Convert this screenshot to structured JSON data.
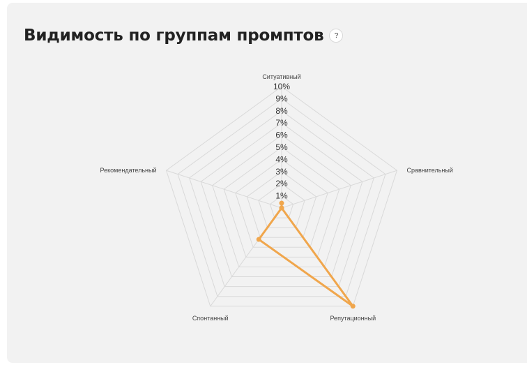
{
  "header": {
    "title": "Видимость по группам промптов",
    "help_label": "?"
  },
  "colors": {
    "series": "#f0a64c",
    "grid": "#d9d9d9",
    "card_bg": "#f2f2f2"
  },
  "chart_data": {
    "type": "radar",
    "title": "Видимость по группам промптов",
    "categories": [
      "Ситуативный",
      "Сравнительный",
      "Репутационный",
      "Спонтанный",
      "Рекомендательный"
    ],
    "ticks": [
      "1%",
      "2%",
      "3%",
      "4%",
      "5%",
      "6%",
      "7%",
      "8%",
      "9%",
      "10%"
    ],
    "rlim": [
      0,
      10
    ],
    "unit": "%",
    "series": [
      {
        "values": [
          0.4,
          0,
          10,
          3.2,
          0
        ]
      }
    ]
  }
}
